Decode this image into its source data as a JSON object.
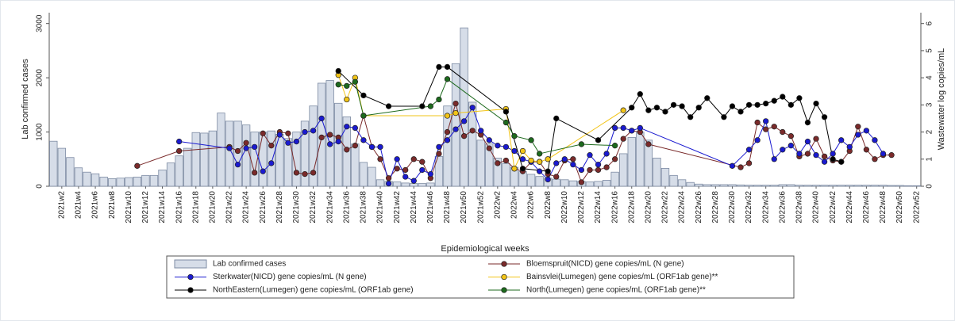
{
  "chart_data": {
    "type": "bar",
    "x_label": "Epidemiological weeks",
    "y_label": "Lab confirmed cases",
    "y2_label": "Wastewater log copies/mL",
    "categories": [
      null,
      "2021w2",
      null,
      "2021w4",
      null,
      "2021w6",
      null,
      "2021w8",
      null,
      "2021w10",
      null,
      "2021w12",
      null,
      "2021w14",
      null,
      "2021w16",
      null,
      "2021w18",
      null,
      "2021w20",
      null,
      "2021w22",
      null,
      "2021w24",
      null,
      "2021w26",
      null,
      "2021w28",
      null,
      "2021w30",
      null,
      "2021w32",
      null,
      "2021w34",
      null,
      "2021w36",
      null,
      "2021w38",
      null,
      "2021w40",
      null,
      "2021w42",
      null,
      "2021w44",
      null,
      "2021w46",
      null,
      "2021w48",
      null,
      "2021w50",
      null,
      "2021w52",
      null,
      "2022w2",
      null,
      "2022w4",
      null,
      "2022w6",
      null,
      "2022w8",
      null,
      "2022w10",
      null,
      "2022w12",
      null,
      "2022w14",
      null,
      "2022w16",
      null,
      "2022w18",
      null,
      "2022w20",
      null,
      "2022w22",
      null,
      "2022w24",
      null,
      "2022w26",
      null,
      "2022w28",
      null,
      "2022w30",
      null,
      "2022w32",
      null,
      "2022w34",
      null,
      "2022w36",
      null,
      "2022w38",
      null,
      "2022w40",
      null,
      "2022w42",
      null,
      "2022w44",
      null,
      "2022w46",
      null,
      "2022w48",
      null,
      "2022w50",
      null,
      "2022w52"
    ],
    "ylim": [
      0,
      3200
    ],
    "yticks": [
      0,
      1000,
      2000,
      3000
    ],
    "y2lim": [
      0,
      6.4
    ],
    "y2ticks": [
      0,
      1,
      2,
      3,
      4,
      5,
      6
    ],
    "series": [
      {
        "name": "Lab confirmed cases",
        "type": "bar",
        "color": "#d6dde8",
        "edge_color": "#7d8ba3",
        "values": [
          830,
          700,
          530,
          340,
          260,
          230,
          170,
          140,
          150,
          160,
          170,
          200,
          200,
          300,
          430,
          560,
          700,
          990,
          980,
          1020,
          1350,
          1200,
          1200,
          1130,
          1000,
          1000,
          1020,
          960,
          880,
          1000,
          1200,
          1480,
          1900,
          1950,
          1530,
          1280,
          780,
          440,
          350,
          120,
          90,
          80,
          60,
          50,
          50,
          60,
          550,
          1480,
          2260,
          2920,
          1550,
          850,
          780,
          520,
          420,
          350,
          270,
          220,
          180,
          150,
          130,
          120,
          100,
          90,
          80,
          90,
          110,
          260,
          600,
          900,
          1000,
          850,
          520,
          330,
          200,
          120,
          70,
          40,
          30,
          30,
          30,
          30,
          25,
          20,
          20,
          20,
          20,
          30,
          30,
          20,
          20,
          20,
          20,
          20,
          20,
          20,
          20,
          20,
          20,
          20,
          15,
          15,
          10,
          10
        ]
      },
      {
        "name": "Bloemspruit(NICD) gene copies/mL (N gene)",
        "type": "line",
        "axis": "y2",
        "color": "#7a2a2a",
        "values": [
          null,
          null,
          null,
          null,
          null,
          null,
          null,
          null,
          null,
          null,
          0.75,
          null,
          null,
          null,
          null,
          1.3,
          null,
          null,
          null,
          null,
          null,
          1.45,
          1.3,
          1.6,
          0.5,
          1.95,
          1.5,
          2.0,
          1.95,
          0.5,
          0.45,
          0.5,
          1.8,
          1.9,
          1.8,
          1.35,
          1.5,
          2.6,
          1.45,
          1.0,
          0.3,
          0.65,
          0.6,
          1.0,
          0.9,
          0.3,
          1.2,
          2.0,
          3.05,
          1.85,
          2.05,
          1.9,
          1.4,
          0.85,
          0.95,
          0.65,
          0.55,
          0.9,
          0.9,
          0.45,
          0.35,
          0.95,
          1.0,
          0.15,
          0.6,
          0.6,
          0.7,
          1.0,
          1.75,
          2.05,
          2.0,
          1.55,
          null,
          null,
          null,
          null,
          null,
          null,
          null,
          null,
          null,
          null,
          0.7,
          0.85,
          2.35,
          2.1,
          2.2,
          2.0,
          1.85,
          1.1,
          1.2,
          1.75,
          1.1,
          0.95,
          0.9,
          1.3,
          2.2,
          1.35,
          1.0,
          1.15,
          1.15,
          null,
          null,
          null
        ]
      },
      {
        "name": "Sterkwater(NICD) gene copies/mL (N gene)",
        "type": "line",
        "axis": "y2",
        "color": "#1a1ad0",
        "values": [
          null,
          null,
          null,
          null,
          null,
          null,
          null,
          null,
          null,
          null,
          null,
          null,
          null,
          null,
          null,
          1.65,
          null,
          null,
          null,
          null,
          null,
          1.4,
          0.8,
          1.4,
          1.45,
          0.55,
          0.85,
          1.9,
          1.6,
          1.65,
          2.0,
          2.05,
          2.5,
          1.55,
          1.65,
          2.2,
          2.15,
          1.7,
          1.45,
          1.45,
          0.1,
          1.0,
          0.35,
          0.2,
          0.6,
          0.45,
          1.45,
          1.7,
          2.1,
          2.4,
          2.9,
          2.05,
          1.7,
          1.5,
          1.45,
          1.3,
          1.0,
          0.9,
          0.55,
          0.25,
          0.85,
          1.0,
          0.8,
          0.6,
          1.15,
          0.8,
          1.2,
          2.15,
          2.15,
          2.05,
          2.15,
          null,
          null,
          null,
          null,
          null,
          null,
          null,
          null,
          null,
          null,
          0.75,
          null,
          1.35,
          1.7,
          2.4,
          1.0,
          1.35,
          1.5,
          1.2,
          1.65,
          1.15,
          0.9,
          1.2,
          1.7,
          1.45,
          1.9,
          2.05,
          1.7,
          1.2,
          null,
          null,
          null,
          null
        ]
      },
      {
        "name": "Bainsvlei(Lumegen) gene copies/mL (ORF1ab gene)**",
        "type": "line",
        "axis": "y2",
        "color": "#f2c417",
        "values": [
          null,
          null,
          null,
          null,
          null,
          null,
          null,
          null,
          null,
          null,
          null,
          null,
          null,
          null,
          null,
          null,
          null,
          null,
          null,
          null,
          null,
          null,
          null,
          null,
          null,
          null,
          null,
          null,
          null,
          null,
          null,
          null,
          null,
          null,
          4.1,
          3.2,
          4.0,
          2.6,
          null,
          null,
          null,
          null,
          null,
          null,
          null,
          null,
          null,
          2.6,
          2.7,
          null,
          null,
          null,
          null,
          null,
          2.85,
          0.65,
          1.3,
          0.95,
          0.9,
          1.0,
          null,
          null,
          null,
          null,
          null,
          null,
          null,
          null,
          2.8,
          null,
          null,
          null,
          null,
          null,
          null,
          null,
          null,
          null,
          null,
          null,
          null,
          null,
          null,
          null,
          null,
          null,
          null,
          null,
          null,
          null,
          null,
          null,
          null,
          null,
          null,
          null,
          null,
          null,
          null,
          null,
          null,
          null,
          null,
          null
        ]
      },
      {
        "name": "NorthEastern(Lumegen) gene copies/mL (ORF1ab gene)",
        "type": "line",
        "axis": "y2",
        "color": "#000000",
        "values": [
          null,
          null,
          null,
          null,
          null,
          null,
          null,
          null,
          null,
          null,
          null,
          null,
          null,
          null,
          null,
          null,
          null,
          null,
          null,
          null,
          null,
          null,
          null,
          null,
          null,
          null,
          null,
          null,
          null,
          null,
          null,
          null,
          null,
          null,
          4.25,
          null,
          null,
          3.35,
          null,
          null,
          2.95,
          null,
          null,
          null,
          2.95,
          null,
          4.4,
          4.4,
          null,
          null,
          null,
          null,
          null,
          null,
          2.75,
          null,
          0.65,
          null,
          null,
          0.55,
          2.5,
          null,
          null,
          null,
          null,
          1.7,
          null,
          null,
          null,
          2.9,
          3.4,
          2.8,
          2.9,
          2.75,
          3.0,
          2.95,
          2.55,
          2.9,
          3.25,
          null,
          2.55,
          2.95,
          2.75,
          3.0,
          3.0,
          3.05,
          3.15,
          3.3,
          3.0,
          3.25,
          2.35,
          3.05,
          2.55,
          1.0,
          0.9,
          null,
          null,
          null,
          null,
          null,
          null,
          null,
          null,
          null
        ]
      },
      {
        "name": "North(Lumegen) gene copies/mL (ORF1ab gene)**",
        "type": "line",
        "axis": "y2",
        "color": "#1d6a1d",
        "values": [
          null,
          null,
          null,
          null,
          null,
          null,
          null,
          null,
          null,
          null,
          null,
          null,
          null,
          null,
          null,
          null,
          null,
          null,
          null,
          null,
          null,
          null,
          null,
          null,
          null,
          null,
          null,
          null,
          null,
          null,
          null,
          null,
          null,
          null,
          3.75,
          3.7,
          3.85,
          2.6,
          null,
          null,
          null,
          null,
          null,
          null,
          null,
          2.95,
          3.2,
          3.95,
          null,
          null,
          null,
          null,
          null,
          null,
          2.35,
          1.85,
          null,
          1.7,
          1.2,
          null,
          null,
          null,
          null,
          1.55,
          null,
          null,
          null,
          1.5,
          null,
          null,
          null,
          null,
          null,
          null,
          null,
          null,
          null,
          null,
          null,
          null,
          null,
          null,
          null,
          null,
          null,
          null,
          null,
          null,
          null,
          null,
          null,
          null,
          null,
          null,
          null,
          null,
          null,
          null,
          null,
          null,
          null,
          null,
          null,
          null
        ]
      }
    ]
  }
}
